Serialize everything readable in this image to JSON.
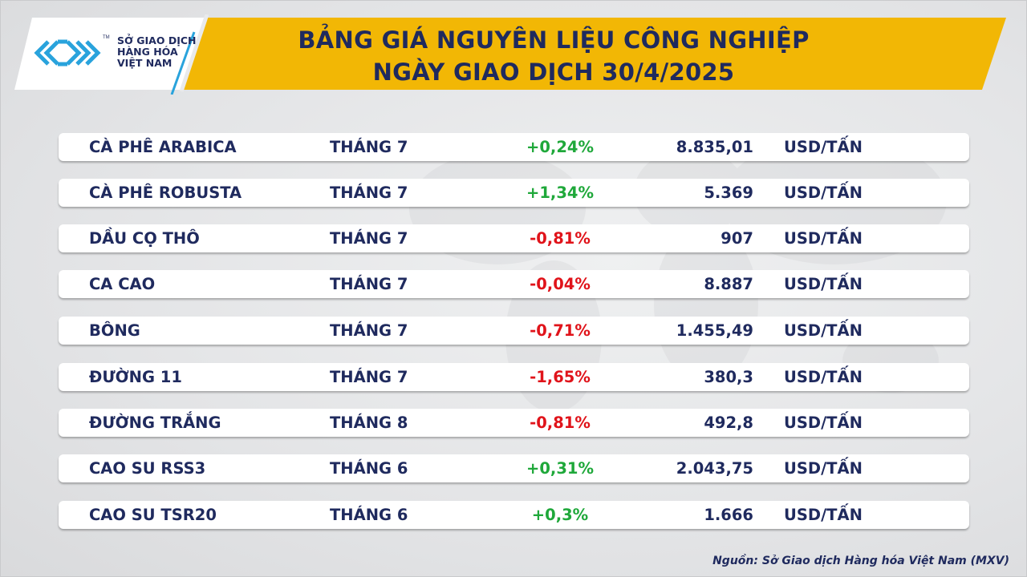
{
  "header": {
    "title_line1": "BẢNG GIÁ NGUYÊN LIỆU CÔNG NGHIỆP",
    "title_line2": "NGÀY GIAO DỊCH 30/4/2025",
    "accent_color": "#f2b705",
    "text_color": "#1f2a5e"
  },
  "logo": {
    "line1": "SỞ GIAO DỊCH",
    "line2": "HÀNG HÓA",
    "line3": "VIỆT NAM",
    "tm": "TM",
    "icon": "mxv-logo-icon"
  },
  "rows": [
    {
      "name": "CÀ PHÊ ARABICA",
      "month": "THÁNG 7",
      "change": "+0,24%",
      "direction": "up",
      "price": "8.835,01",
      "unit": "USD/TẤN"
    },
    {
      "name": "CÀ PHÊ ROBUSTA",
      "month": "THÁNG 7",
      "change": "+1,34%",
      "direction": "up",
      "price": "5.369",
      "unit": "USD/TẤN"
    },
    {
      "name": "DẦU CỌ THÔ",
      "month": "THÁNG 7",
      "change": "-0,81%",
      "direction": "down",
      "price": "907",
      "unit": "USD/TẤN"
    },
    {
      "name": "CA CAO",
      "month": "THÁNG 7",
      "change": "-0,04%",
      "direction": "down",
      "price": "8.887",
      "unit": "USD/TẤN"
    },
    {
      "name": "BÔNG",
      "month": "THÁNG 7",
      "change": "-0,71%",
      "direction": "down",
      "price": "1.455,49",
      "unit": "USD/TẤN"
    },
    {
      "name": "ĐƯỜNG 11",
      "month": "THÁNG 7",
      "change": "-1,65%",
      "direction": "down",
      "price": "380,3",
      "unit": "USD/TẤN"
    },
    {
      "name": "ĐƯỜNG TRẮNG",
      "month": "THÁNG 8",
      "change": "-0,81%",
      "direction": "down",
      "price": "492,8",
      "unit": "USD/TẤN"
    },
    {
      "name": "CAO SU RSS3",
      "month": "THÁNG 6",
      "change": "+0,31%",
      "direction": "up",
      "price": "2.043,75",
      "unit": "USD/TẤN"
    },
    {
      "name": "CAO SU TSR20",
      "month": "THÁNG 6",
      "change": "+0,3%",
      "direction": "up",
      "price": "1.666",
      "unit": "USD/TẤN"
    }
  ],
  "colors": {
    "up": "#1fa83a",
    "down": "#e0131a"
  },
  "footer": {
    "source": "Nguồn: Sở Giao dịch Hàng hóa Việt Nam (MXV)"
  }
}
